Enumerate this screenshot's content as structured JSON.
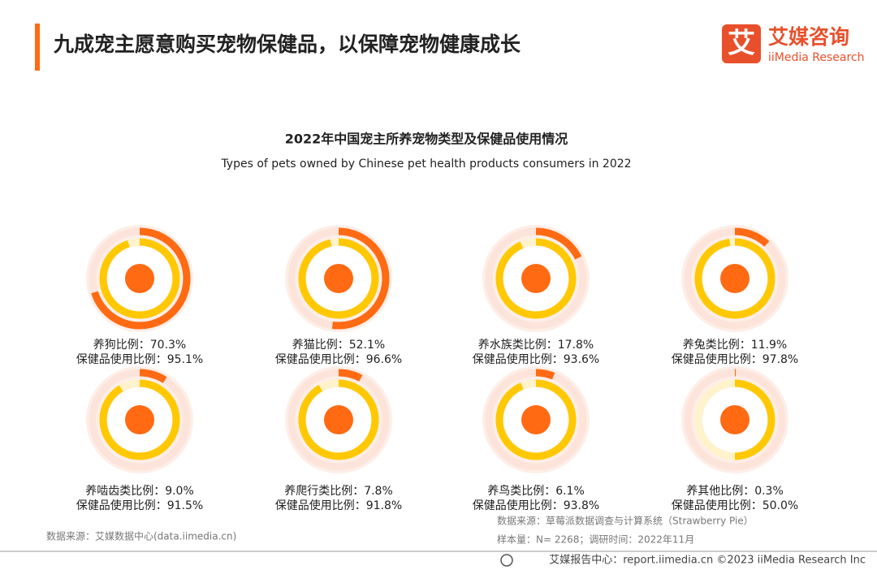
{
  "header": {
    "title": "九成宠主愿意购买宠物保健品，以保障宠物健康成长",
    "logo_mark": "艾",
    "logo_cn": "艾媒咨询",
    "logo_en": "iiMedia Research"
  },
  "figure": {
    "title": "2022年中国宠主所养宠物类型及保健品使用情况",
    "subtitle": "Types of pets owned by Chinese pet health products consumers in 2022"
  },
  "chart_data": [
    {
      "type": "ring",
      "series": [
        {
          "name": "养狗比例：",
          "color": "#ff6a13",
          "values": [
            70.3
          ],
          "value_labels": [
            "70.3%"
          ]
        },
        {
          "name": "保健品使用比例：",
          "color": "#ffc800",
          "values": [
            95.1
          ],
          "value_labels": [
            "95.1%"
          ]
        }
      ]
    },
    {
      "type": "ring",
      "series": [
        {
          "name": "养猫比例：",
          "color": "#ff6a13",
          "values": [
            52.1
          ],
          "value_labels": [
            "52.1%"
          ]
        },
        {
          "name": "保健品使用比例：",
          "color": "#ffc800",
          "values": [
            96.6
          ],
          "value_labels": [
            "96.6%"
          ]
        }
      ]
    },
    {
      "type": "ring",
      "series": [
        {
          "name": "养水族类比例：",
          "color": "#ff6a13",
          "values": [
            17.8
          ],
          "value_labels": [
            "17.8%"
          ]
        },
        {
          "name": "保健品使用比例：",
          "color": "#ffc800",
          "values": [
            93.6
          ],
          "value_labels": [
            "93.6%"
          ]
        }
      ]
    },
    {
      "type": "ring",
      "series": [
        {
          "name": "养兔类比例：",
          "color": "#ff6a13",
          "values": [
            11.9
          ],
          "value_labels": [
            "11.9%"
          ]
        },
        {
          "name": "保健品使用比例：",
          "color": "#ffc800",
          "values": [
            97.8
          ],
          "value_labels": [
            "97.8%"
          ]
        }
      ]
    },
    {
      "type": "ring",
      "series": [
        {
          "name": "养啮齿类比例：",
          "color": "#ff6a13",
          "values": [
            9.0
          ],
          "value_labels": [
            "9.0%"
          ]
        },
        {
          "name": "保健品使用比例：",
          "color": "#ffc800",
          "values": [
            91.5
          ],
          "value_labels": [
            "91.5%"
          ]
        }
      ]
    },
    {
      "type": "ring",
      "series": [
        {
          "name": "养爬行类比例：",
          "color": "#ff6a13",
          "values": [
            7.8
          ],
          "value_labels": [
            "7.8%"
          ]
        },
        {
          "name": "保健品使用比例：",
          "color": "#ffc800",
          "values": [
            91.8
          ],
          "value_labels": [
            "91.8%"
          ]
        }
      ]
    },
    {
      "type": "ring",
      "series": [
        {
          "name": "养鸟类比例：",
          "color": "#ff6a13",
          "values": [
            6.1
          ],
          "value_labels": [
            "6.1%"
          ]
        },
        {
          "name": "保健品使用比例：",
          "color": "#ffc800",
          "values": [
            93.8
          ],
          "value_labels": [
            "93.8%"
          ]
        }
      ]
    },
    {
      "type": "ring",
      "series": [
        {
          "name": "养其他比例：",
          "color": "#ff6a13",
          "values": [
            0.3
          ],
          "value_labels": [
            "0.3%"
          ]
        },
        {
          "name": "保健品使用比例：",
          "color": "#ffc800",
          "values": [
            50.0
          ],
          "value_labels": [
            "50.0%"
          ]
        }
      ]
    }
  ],
  "footer": {
    "source_left": "数据来源：艾媒数据中心(data.iimedia.cn)",
    "source_right": "数据来源：草莓派数据调查与计算系统（Strawberry Pie）",
    "sample": "样本量：N= 2268；调研时间：2022年11月",
    "copyright": "艾媒报告中心：report.iimedia.cn  ©2023  iiMedia Research Inc"
  }
}
